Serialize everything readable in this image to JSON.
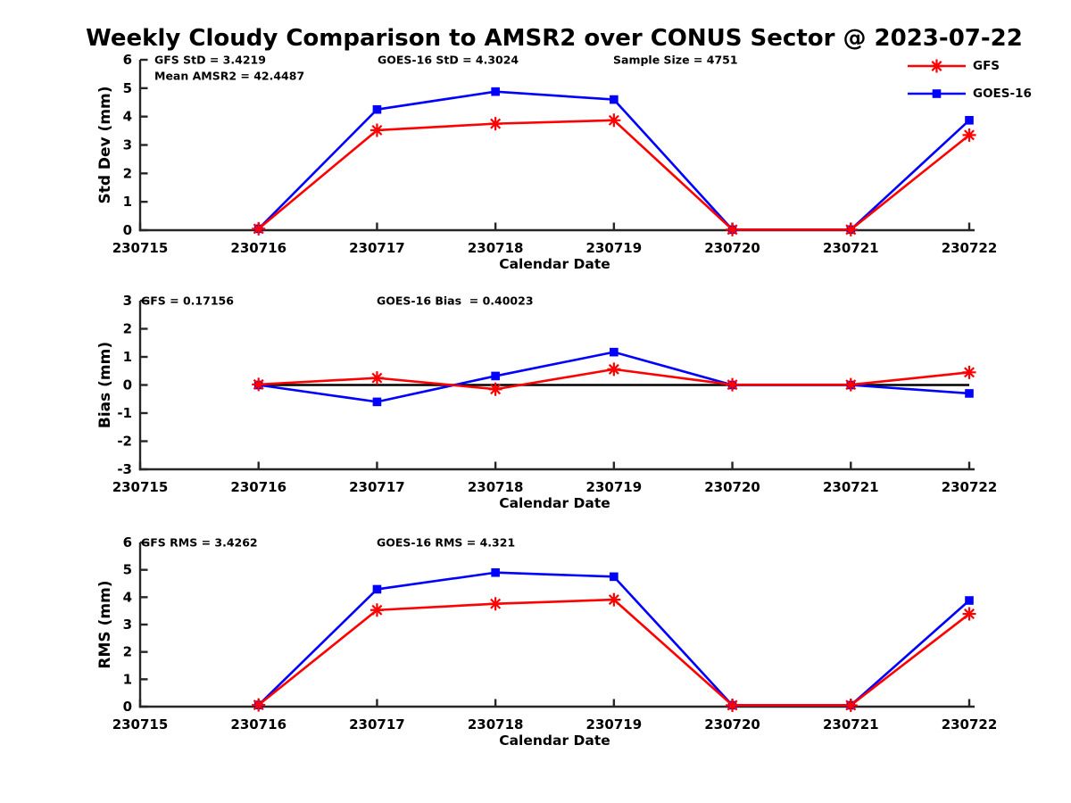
{
  "title": "Weekly Cloudy Comparison to AMSR2 over CONUS Sector @ 2023-07-22",
  "colors": {
    "gfs": "#ff0000",
    "goes16": "#0000ff",
    "axis": "#262626",
    "zero_line": "#000000",
    "background": "#ffffff"
  },
  "legend": {
    "position": "top-right",
    "entries": [
      {
        "label": "GFS",
        "color": "#ff0000",
        "marker": "asterisk"
      },
      {
        "label": "GOES-16",
        "color": "#0000ff",
        "marker": "square"
      }
    ]
  },
  "chart_data": [
    {
      "type": "line",
      "name": "std-dev",
      "ylabel": "Std Dev (mm)",
      "xlabel": "Calendar Date",
      "ylim": [
        0,
        6
      ],
      "yticks": [
        0,
        1,
        2,
        3,
        4,
        5,
        6
      ],
      "xticks": [
        "230715",
        "230716",
        "230717",
        "230718",
        "230719",
        "230720",
        "230721",
        "230722"
      ],
      "x": [
        "230716",
        "230717",
        "230718",
        "230719",
        "230720",
        "230721",
        "230722"
      ],
      "grid": false,
      "zero_line": false,
      "series": [
        {
          "name": "GFS",
          "color": "#ff0000",
          "marker": "asterisk",
          "values": [
            0.05,
            3.52,
            3.75,
            3.87,
            0.02,
            0.02,
            3.35
          ]
        },
        {
          "name": "GOES-16",
          "color": "#0000ff",
          "marker": "square",
          "values": [
            0.05,
            4.25,
            4.88,
            4.6,
            0.02,
            0.02,
            3.87
          ]
        }
      ],
      "annotations": [
        {
          "text": "GFS StD = 3.4219",
          "col": 0,
          "line": 0
        },
        {
          "text": "Mean AMSR2 = 42.4487",
          "col": 0,
          "line": 1
        },
        {
          "text": "GOES-16 StD = 4.3024",
          "col": 1,
          "line": 0
        },
        {
          "text": "Sample Size = 4751",
          "col": 2,
          "line": 0
        }
      ]
    },
    {
      "type": "line",
      "name": "bias",
      "ylabel": "Bias (mm)",
      "xlabel": "Calendar Date",
      "ylim": [
        -3,
        3
      ],
      "yticks": [
        3,
        2,
        1,
        0,
        -1,
        -2,
        -3
      ],
      "xticks": [
        "230715",
        "230716",
        "230717",
        "230718",
        "230719",
        "230720",
        "230721",
        "230722"
      ],
      "x": [
        "230716",
        "230717",
        "230718",
        "230719",
        "230720",
        "230721",
        "230722"
      ],
      "grid": false,
      "zero_line": true,
      "series": [
        {
          "name": "GFS",
          "color": "#ff0000",
          "marker": "asterisk",
          "values": [
            0.02,
            0.25,
            -0.15,
            0.56,
            0.01,
            0.01,
            0.45
          ]
        },
        {
          "name": "GOES-16",
          "color": "#0000ff",
          "marker": "square",
          "values": [
            0.0,
            -0.6,
            0.32,
            1.17,
            0.0,
            0.0,
            -0.3
          ]
        }
      ],
      "annotations": [
        {
          "text": "GFS = 0.17156",
          "col": 0,
          "line": 0
        },
        {
          "text": "GOES-16 Bias  = 0.40023",
          "col": 1,
          "line": 0
        }
      ]
    },
    {
      "type": "line",
      "name": "rms",
      "ylabel": "RMS (mm)",
      "xlabel": "Calendar Date",
      "ylim": [
        0,
        6
      ],
      "yticks": [
        0,
        1,
        2,
        3,
        4,
        5,
        6
      ],
      "xticks": [
        "230715",
        "230716",
        "230717",
        "230718",
        "230719",
        "230720",
        "230721",
        "230722"
      ],
      "x": [
        "230716",
        "230717",
        "230718",
        "230719",
        "230720",
        "230721",
        "230722"
      ],
      "grid": false,
      "zero_line": false,
      "series": [
        {
          "name": "GFS",
          "color": "#ff0000",
          "marker": "asterisk",
          "values": [
            0.06,
            3.53,
            3.76,
            3.91,
            0.05,
            0.05,
            3.39
          ]
        },
        {
          "name": "GOES-16",
          "color": "#0000ff",
          "marker": "square",
          "values": [
            0.06,
            4.29,
            4.9,
            4.75,
            0.05,
            0.05,
            3.88
          ]
        }
      ],
      "annotations": [
        {
          "text": "GFS RMS = 3.4262",
          "col": 0,
          "line": 0
        },
        {
          "text": "GOES-16 RMS = 4.321",
          "col": 1,
          "line": 0
        }
      ]
    }
  ]
}
